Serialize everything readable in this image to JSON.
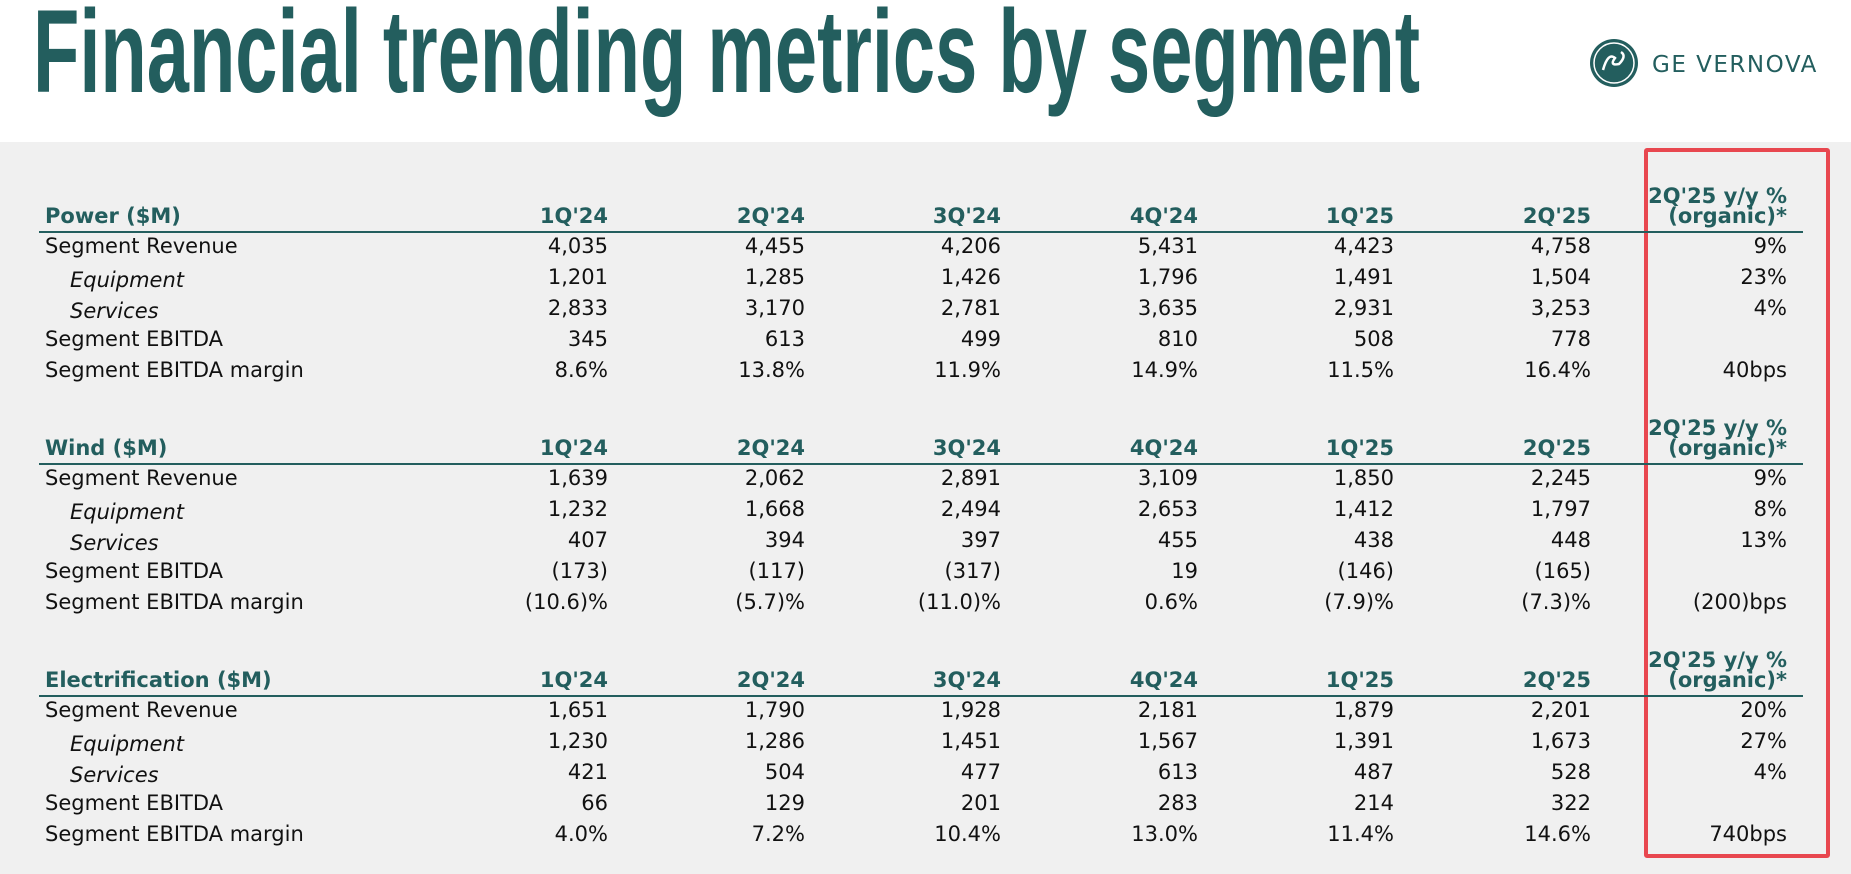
{
  "header": {
    "title": "Financial trending metrics by segment",
    "logo": "GE VERNOVA"
  },
  "sections": [
    {
      "title": "Power ($M)",
      "columns": [
        "1Q'24",
        "2Q'24",
        "3Q'24",
        "4Q'24",
        "1Q'25",
        "2Q'25"
      ],
      "yoy_header": [
        "2Q'25 y/y %",
        "(organic)*"
      ],
      "rows": [
        {
          "label": "Segment Revenue",
          "values": [
            "4,035",
            "4,455",
            "4,206",
            "5,431",
            "4,423",
            "4,758"
          ],
          "yoy": "9%"
        },
        {
          "label": "Equipment",
          "values": [
            "1,201",
            "1,285",
            "1,426",
            "1,796",
            "1,491",
            "1,504"
          ],
          "yoy": "23%"
        },
        {
          "label": "Services",
          "values": [
            "2,833",
            "3,170",
            "2,781",
            "3,635",
            "2,931",
            "3,253"
          ],
          "yoy": "4%"
        },
        {
          "label": "Segment EBITDA",
          "values": [
            "345",
            "613",
            "499",
            "810",
            "508",
            "778"
          ]
        },
        {
          "label": "Segment EBITDA margin",
          "values": [
            "8.6%",
            "13.8%",
            "11.9%",
            "14.9%",
            "11.5%",
            "16.4%"
          ],
          "yoy": "40bps"
        }
      ]
    },
    {
      "title": "Wind ($M)",
      "columns": [
        "1Q'24",
        "2Q'24",
        "3Q'24",
        "4Q'24",
        "1Q'25",
        "2Q'25"
      ],
      "yoy_header": [
        "2Q'25 y/y %",
        "(organic)*"
      ],
      "rows": [
        {
          "label": "Segment Revenue",
          "values": [
            "1,639",
            "2,062",
            "2,891",
            "3,109",
            "1,850",
            "2,245"
          ],
          "yoy": "9%"
        },
        {
          "label": "Equipment",
          "values": [
            "1,232",
            "1,668",
            "2,494",
            "2,653",
            "1,412",
            "1,797"
          ],
          "yoy": "8%"
        },
        {
          "label": "Services",
          "values": [
            "407",
            "394",
            "397",
            "455",
            "438",
            "448"
          ],
          "yoy": "13%"
        },
        {
          "label": "Segment EBITDA",
          "values": [
            "(173)",
            "(117)",
            "(317)",
            "19",
            "(146)",
            "(165)"
          ]
        },
        {
          "label": "Segment EBITDA margin",
          "values": [
            "(10.6)%",
            "(5.7)%",
            "(11.0)%",
            "0.6%",
            "(7.9)%",
            "(7.3)%"
          ],
          "yoy": "(200)bps"
        }
      ]
    },
    {
      "title": "Electrification ($M)",
      "columns": [
        "1Q'24",
        "2Q'24",
        "3Q'24",
        "4Q'24",
        "1Q'25",
        "2Q'25"
      ],
      "yoy_header": [
        "2Q'25 y/y %",
        "(organic)*"
      ],
      "rows": [
        {
          "label": "Segment Revenue",
          "values": [
            "1,651",
            "1,790",
            "1,928",
            "2,181",
            "1,879",
            "2,201"
          ],
          "yoy": "20%"
        },
        {
          "label": "Equipment",
          "values": [
            "1,230",
            "1,286",
            "1,451",
            "1,567",
            "1,391",
            "1,673"
          ],
          "yoy": "27%"
        },
        {
          "label": "Services",
          "values": [
            "421",
            "504",
            "477",
            "613",
            "487",
            "528"
          ],
          "yoy": "4%"
        },
        {
          "label": "Segment EBITDA",
          "values": [
            "66",
            "129",
            "201",
            "283",
            "214",
            "322"
          ]
        },
        {
          "label": "Segment EBITDA margin",
          "values": [
            "4.0%",
            "7.2%",
            "10.4%",
            "13.0%",
            "11.4%",
            "14.6%"
          ],
          "yoy": "740bps"
        }
      ]
    }
  ]
}
